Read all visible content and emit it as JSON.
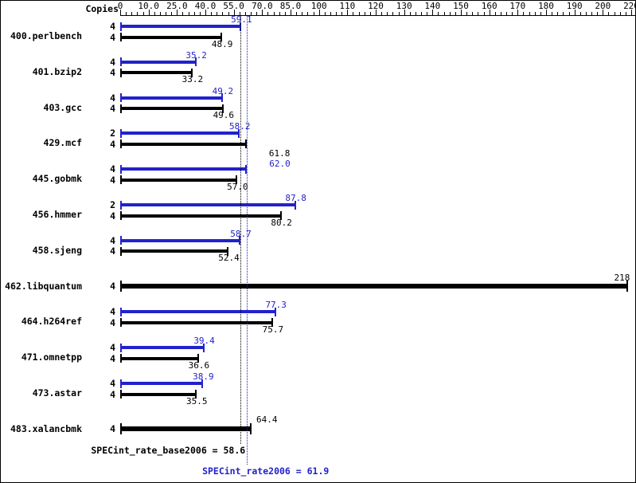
{
  "chart_data": {
    "type": "bar",
    "orientation": "horizontal",
    "copies_header": "Copies",
    "axis": {
      "position": "top",
      "range": [
        0,
        220
      ],
      "tick_labels": [
        "0",
        "10.0",
        "25.0",
        "40.0",
        "55.0",
        "70.0",
        "85.0",
        "100",
        "110",
        "120",
        "130",
        "140",
        "150",
        "160",
        "170",
        "180",
        "190",
        "200",
        "220"
      ],
      "tick_values": [
        0,
        10,
        25,
        40,
        55,
        70,
        85,
        100,
        110,
        120,
        130,
        140,
        150,
        160,
        170,
        180,
        190,
        200,
        220
      ]
    },
    "series_colors": {
      "peak": "#2222cc",
      "base": "#000000",
      "single": "#000000"
    },
    "benchmarks": [
      {
        "name": "400.perlbench",
        "bars": [
          {
            "kind": "peak",
            "copies": "4",
            "value": 59.1,
            "label": "59.1"
          },
          {
            "kind": "base",
            "copies": "4",
            "value": 48.9,
            "label": "48.9"
          }
        ]
      },
      {
        "name": "401.bzip2",
        "bars": [
          {
            "kind": "peak",
            "copies": "4",
            "value": 35.2,
            "label": "35.2"
          },
          {
            "kind": "base",
            "copies": "4",
            "value": 33.2,
            "label": "33.2"
          }
        ]
      },
      {
        "name": "403.gcc",
        "bars": [
          {
            "kind": "peak",
            "copies": "4",
            "value": 49.2,
            "label": "49.2"
          },
          {
            "kind": "base",
            "copies": "4",
            "value": 49.6,
            "label": "49.6"
          }
        ]
      },
      {
        "name": "429.mcf",
        "bars": [
          {
            "kind": "peak",
            "copies": "2",
            "value": 58.2,
            "label": "58.2"
          },
          {
            "kind": "base",
            "copies": "4",
            "value": 61.8,
            "label": "61.8"
          }
        ]
      },
      {
        "name": "445.gobmk",
        "bars": [
          {
            "kind": "peak",
            "copies": "4",
            "value": 62.0,
            "label": "62.0"
          },
          {
            "kind": "base",
            "copies": "4",
            "value": 57.0,
            "label": "57.0"
          }
        ]
      },
      {
        "name": "456.hmmer",
        "bars": [
          {
            "kind": "peak",
            "copies": "2",
            "value": 87.8,
            "label": "87.8"
          },
          {
            "kind": "base",
            "copies": "4",
            "value": 80.2,
            "label": "80.2"
          }
        ]
      },
      {
        "name": "458.sjeng",
        "bars": [
          {
            "kind": "peak",
            "copies": "4",
            "value": 58.7,
            "label": "58.7"
          },
          {
            "kind": "base",
            "copies": "4",
            "value": 52.4,
            "label": "52.4"
          }
        ]
      },
      {
        "name": "462.libquantum",
        "bars": [
          {
            "kind": "single",
            "copies": "4",
            "value": 218,
            "label": "218"
          }
        ]
      },
      {
        "name": "464.h264ref",
        "bars": [
          {
            "kind": "peak",
            "copies": "4",
            "value": 77.3,
            "label": "77.3"
          },
          {
            "kind": "base",
            "copies": "4",
            "value": 75.7,
            "label": "75.7"
          }
        ]
      },
      {
        "name": "471.omnetpp",
        "bars": [
          {
            "kind": "peak",
            "copies": "4",
            "value": 39.4,
            "label": "39.4"
          },
          {
            "kind": "base",
            "copies": "4",
            "value": 36.6,
            "label": "36.6"
          }
        ]
      },
      {
        "name": "473.astar",
        "bars": [
          {
            "kind": "peak",
            "copies": "4",
            "value": 38.9,
            "label": "38.9"
          },
          {
            "kind": "base",
            "copies": "4",
            "value": 35.5,
            "label": "35.5"
          }
        ]
      },
      {
        "name": "483.xalancbmk",
        "bars": [
          {
            "kind": "single",
            "copies": "4",
            "value": 64.4,
            "label": "64.4"
          }
        ]
      }
    ],
    "references": [
      {
        "label": "SPECint_rate_base2006 = 58.6",
        "value": 58.6,
        "color": "#000000"
      },
      {
        "label": "SPECint_rate2006 = 61.9",
        "value": 61.9,
        "color": "#2222cc"
      }
    ]
  }
}
